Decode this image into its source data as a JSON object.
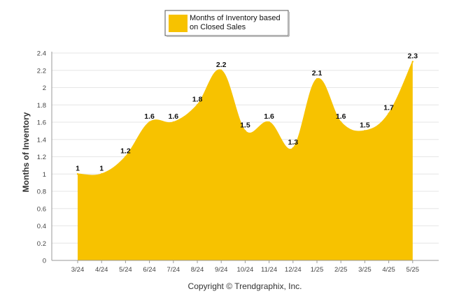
{
  "chart_data": {
    "type": "area",
    "categories": [
      "3/24",
      "4/24",
      "5/24",
      "6/24",
      "7/24",
      "8/24",
      "9/24",
      "10/24",
      "11/24",
      "12/24",
      "1/25",
      "2/25",
      "3/25",
      "4/25",
      "5/25"
    ],
    "series": [
      {
        "name": "Months of Inventory based on Closed Sales",
        "values": [
          1,
          1,
          1.2,
          1.6,
          1.6,
          1.8,
          2.2,
          1.5,
          1.6,
          1.3,
          2.1,
          1.6,
          1.5,
          1.7,
          2.3
        ],
        "color": "#F7C200"
      }
    ],
    "data_labels": [
      "1",
      "1",
      "1.2",
      "1.6",
      "1.6",
      "1.8",
      "2.2",
      "1.5",
      "1.6",
      "1.3",
      "2.1",
      "1.6",
      "1.5",
      "1.7",
      "2.3"
    ],
    "ylabel": "Months of Inventory",
    "xlabel": "",
    "ylim": [
      0,
      2.4
    ],
    "yticks": [
      0,
      0.2,
      0.4,
      0.6,
      0.8,
      1,
      1.2,
      1.4,
      1.6,
      1.8,
      2,
      2.2,
      2.4
    ],
    "ytick_labels": [
      "0",
      "0.2",
      "0.4",
      "0.6",
      "0.8",
      "1",
      "1.2",
      "1.4",
      "1.6",
      "1.8",
      "2",
      "2.2",
      "2.4"
    ],
    "legend": {
      "lines": [
        "Months of Inventory based",
        "on Closed Sales"
      ],
      "placement": "top-center"
    },
    "grid": true,
    "grid_color": "#e6e6e6",
    "axis_color": "#999999"
  },
  "footer": {
    "copyright": "Copyright © Trendgraphix, Inc."
  }
}
